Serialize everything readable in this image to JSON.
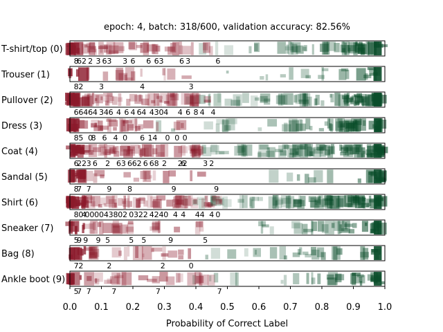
{
  "chart_data": {
    "type": "strip",
    "title": "epoch: 4, batch: 318/600, validation accuracy: 82.56%",
    "xlabel": "Probability of Correct Label",
    "xlim": [
      0.0,
      1.0
    ],
    "xticks": [
      "0.0",
      "0.1",
      "0.2",
      "0.3",
      "0.4",
      "0.5",
      "0.6",
      "0.7",
      "0.8",
      "0.9",
      "1.0"
    ],
    "colors": {
      "wrong": "#8b1a2b",
      "correct": "#0a4d2a"
    },
    "rows": [
      {
        "label": "T-shirt/top (0)",
        "wrong_extent": 0.46,
        "density": 0.55,
        "annotations": [
          {
            "x": 0.02,
            "t": "8"
          },
          {
            "x": 0.03,
            "t": "6"
          },
          {
            "x": 0.045,
            "t": "2"
          },
          {
            "x": 0.065,
            "t": "2"
          },
          {
            "x": 0.09,
            "t": "3"
          },
          {
            "x": 0.11,
            "t": "6"
          },
          {
            "x": 0.125,
            "t": "3"
          },
          {
            "x": 0.175,
            "t": "3"
          },
          {
            "x": 0.2,
            "t": "6"
          },
          {
            "x": 0.25,
            "t": "6"
          },
          {
            "x": 0.275,
            "t": "6"
          },
          {
            "x": 0.29,
            "t": "3"
          },
          {
            "x": 0.355,
            "t": "6"
          },
          {
            "x": 0.375,
            "t": "3"
          },
          {
            "x": 0.47,
            "t": "6"
          }
        ]
      },
      {
        "label": "Trouser (1)",
        "wrong_extent": 0.39,
        "density": 0.12,
        "annotations": [
          {
            "x": 0.02,
            "t": "8"
          },
          {
            "x": 0.035,
            "t": "2"
          },
          {
            "x": 0.1,
            "t": "3"
          },
          {
            "x": 0.23,
            "t": "4"
          },
          {
            "x": 0.385,
            "t": "3"
          }
        ]
      },
      {
        "label": "Pullover (2)",
        "wrong_extent": 0.44,
        "density": 0.8,
        "annotations": [
          {
            "x": 0.02,
            "t": "6"
          },
          {
            "x": 0.035,
            "t": "6"
          },
          {
            "x": 0.05,
            "t": "4"
          },
          {
            "x": 0.065,
            "t": "6"
          },
          {
            "x": 0.08,
            "t": "4"
          },
          {
            "x": 0.1,
            "t": "3"
          },
          {
            "x": 0.115,
            "t": "4"
          },
          {
            "x": 0.13,
            "t": "6"
          },
          {
            "x": 0.155,
            "t": "4"
          },
          {
            "x": 0.18,
            "t": "6"
          },
          {
            "x": 0.2,
            "t": "4"
          },
          {
            "x": 0.22,
            "t": "6"
          },
          {
            "x": 0.235,
            "t": "4"
          },
          {
            "x": 0.26,
            "t": "4"
          },
          {
            "x": 0.275,
            "t": "3"
          },
          {
            "x": 0.29,
            "t": "0"
          },
          {
            "x": 0.305,
            "t": "4"
          },
          {
            "x": 0.35,
            "t": "4"
          },
          {
            "x": 0.375,
            "t": "6"
          },
          {
            "x": 0.4,
            "t": "8"
          },
          {
            "x": 0.42,
            "t": "4"
          },
          {
            "x": 0.455,
            "t": "4"
          }
        ]
      },
      {
        "label": "Dress (3)",
        "wrong_extent": 0.38,
        "density": 0.5,
        "annotations": [
          {
            "x": 0.02,
            "t": "8"
          },
          {
            "x": 0.035,
            "t": "5"
          },
          {
            "x": 0.065,
            "t": "0"
          },
          {
            "x": 0.075,
            "t": "8"
          },
          {
            "x": 0.11,
            "t": "6"
          },
          {
            "x": 0.145,
            "t": "4"
          },
          {
            "x": 0.175,
            "t": "0"
          },
          {
            "x": 0.23,
            "t": "6"
          },
          {
            "x": 0.255,
            "t": "1"
          },
          {
            "x": 0.27,
            "t": "4"
          },
          {
            "x": 0.31,
            "t": "0"
          },
          {
            "x": 0.34,
            "t": "0"
          },
          {
            "x": 0.365,
            "t": "0"
          }
        ]
      },
      {
        "label": "Coat (4)",
        "wrong_extent": 0.43,
        "density": 0.9,
        "annotations": [
          {
            "x": 0.02,
            "t": "6"
          },
          {
            "x": 0.03,
            "t": "2"
          },
          {
            "x": 0.045,
            "t": "2"
          },
          {
            "x": 0.06,
            "t": "3"
          },
          {
            "x": 0.08,
            "t": "6"
          },
          {
            "x": 0.12,
            "t": "2"
          },
          {
            "x": 0.155,
            "t": "6"
          },
          {
            "x": 0.17,
            "t": "3"
          },
          {
            "x": 0.19,
            "t": "6"
          },
          {
            "x": 0.205,
            "t": "6"
          },
          {
            "x": 0.22,
            "t": "2"
          },
          {
            "x": 0.24,
            "t": "6"
          },
          {
            "x": 0.26,
            "t": "6"
          },
          {
            "x": 0.275,
            "t": "8"
          },
          {
            "x": 0.3,
            "t": "2"
          },
          {
            "x": 0.35,
            "t": "2"
          },
          {
            "x": 0.36,
            "t": "6"
          },
          {
            "x": 0.365,
            "t": "2"
          },
          {
            "x": 0.43,
            "t": "3"
          },
          {
            "x": 0.45,
            "t": "2"
          }
        ]
      },
      {
        "label": "Sandal (5)",
        "wrong_extent": 0.47,
        "density": 0.2,
        "annotations": [
          {
            "x": 0.02,
            "t": "8"
          },
          {
            "x": 0.03,
            "t": "7"
          },
          {
            "x": 0.06,
            "t": "7"
          },
          {
            "x": 0.125,
            "t": "9"
          },
          {
            "x": 0.19,
            "t": "8"
          },
          {
            "x": 0.33,
            "t": "9"
          },
          {
            "x": 0.465,
            "t": "9"
          }
        ]
      },
      {
        "label": "Shirt (6)",
        "wrong_extent": 0.48,
        "density": 0.95,
        "annotations": [
          {
            "x": 0.02,
            "t": "8"
          },
          {
            "x": 0.035,
            "t": "0"
          },
          {
            "x": 0.045,
            "t": "4"
          },
          {
            "x": 0.055,
            "t": "0"
          },
          {
            "x": 0.07,
            "t": "0"
          },
          {
            "x": 0.085,
            "t": "0"
          },
          {
            "x": 0.1,
            "t": "0"
          },
          {
            "x": 0.115,
            "t": "4"
          },
          {
            "x": 0.13,
            "t": "3"
          },
          {
            "x": 0.145,
            "t": "8"
          },
          {
            "x": 0.16,
            "t": "0"
          },
          {
            "x": 0.175,
            "t": "2"
          },
          {
            "x": 0.195,
            "t": "0"
          },
          {
            "x": 0.21,
            "t": "3"
          },
          {
            "x": 0.225,
            "t": "2"
          },
          {
            "x": 0.24,
            "t": "2"
          },
          {
            "x": 0.26,
            "t": "4"
          },
          {
            "x": 0.275,
            "t": "2"
          },
          {
            "x": 0.29,
            "t": "4"
          },
          {
            "x": 0.305,
            "t": "0"
          },
          {
            "x": 0.335,
            "t": "4"
          },
          {
            "x": 0.36,
            "t": "4"
          },
          {
            "x": 0.405,
            "t": "4"
          },
          {
            "x": 0.42,
            "t": "4"
          },
          {
            "x": 0.45,
            "t": "4"
          },
          {
            "x": 0.47,
            "t": "0"
          }
        ]
      },
      {
        "label": "Sneaker (7)",
        "wrong_extent": 0.43,
        "density": 0.3,
        "annotations": [
          {
            "x": 0.02,
            "t": "5"
          },
          {
            "x": 0.03,
            "t": "9"
          },
          {
            "x": 0.05,
            "t": "9"
          },
          {
            "x": 0.09,
            "t": "9"
          },
          {
            "x": 0.12,
            "t": "5"
          },
          {
            "x": 0.195,
            "t": "5"
          },
          {
            "x": 0.235,
            "t": "5"
          },
          {
            "x": 0.32,
            "t": "9"
          },
          {
            "x": 0.43,
            "t": "5"
          }
        ]
      },
      {
        "label": "Bag (8)",
        "wrong_extent": 0.39,
        "density": 0.25,
        "annotations": [
          {
            "x": 0.02,
            "t": "7"
          },
          {
            "x": 0.035,
            "t": "2"
          },
          {
            "x": 0.125,
            "t": "2"
          },
          {
            "x": 0.295,
            "t": "2"
          },
          {
            "x": 0.385,
            "t": "0"
          }
        ]
      },
      {
        "label": "Ankle boot (9)",
        "wrong_extent": 0.47,
        "density": 0.3,
        "annotations": [
          {
            "x": 0.02,
            "t": "5"
          },
          {
            "x": 0.03,
            "t": "7"
          },
          {
            "x": 0.06,
            "t": "7"
          },
          {
            "x": 0.14,
            "t": "7"
          },
          {
            "x": 0.28,
            "t": "7"
          },
          {
            "x": 0.475,
            "t": "7"
          }
        ]
      }
    ]
  }
}
